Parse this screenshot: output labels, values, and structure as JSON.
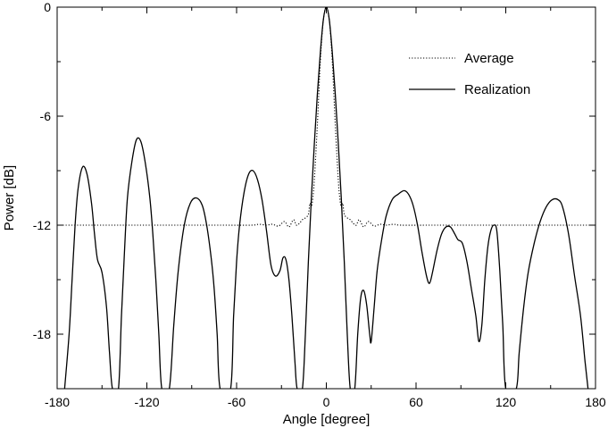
{
  "chart_data": {
    "type": "line",
    "xlabel": "Angle [degree]",
    "ylabel": "Power [dB]",
    "xlim": [
      -180,
      180
    ],
    "ylim": [
      -21,
      0
    ],
    "xticks": [
      -180,
      -120,
      -60,
      0,
      60,
      120,
      180
    ],
    "yticks": [
      0,
      -6,
      -12,
      -18
    ],
    "grid": false,
    "legend_position": "top-right",
    "series": [
      {
        "name": "Average",
        "style": "dotted",
        "color": "#000000",
        "points": [
          [
            -180,
            -12.0
          ],
          [
            -150,
            -12.0
          ],
          [
            -110,
            -12.0
          ],
          [
            -70,
            -12.0
          ],
          [
            -50,
            -12.0
          ],
          [
            -45,
            -11.95
          ],
          [
            -40,
            -12.0
          ],
          [
            -36,
            -11.95
          ],
          [
            -32,
            -12.05
          ],
          [
            -28,
            -11.8
          ],
          [
            -25,
            -12.1
          ],
          [
            -22,
            -11.7
          ],
          [
            -20,
            -12.0
          ],
          [
            -18,
            -11.9
          ],
          [
            -16,
            -11.7
          ],
          [
            -14,
            -11.6
          ],
          [
            -12,
            -11.4
          ],
          [
            -11,
            -10.8
          ],
          [
            -10,
            -11.0
          ],
          [
            -9,
            -10.5
          ],
          [
            -8,
            -9.5
          ],
          [
            -6,
            -6.5
          ],
          [
            -4,
            -3.0
          ],
          [
            -2,
            -0.7
          ],
          [
            0,
            0.0
          ],
          [
            2,
            -0.7
          ],
          [
            4,
            -3.0
          ],
          [
            6,
            -6.5
          ],
          [
            8,
            -9.5
          ],
          [
            9,
            -10.5
          ],
          [
            10,
            -11.0
          ],
          [
            11,
            -10.8
          ],
          [
            12,
            -11.4
          ],
          [
            14,
            -11.6
          ],
          [
            16,
            -11.7
          ],
          [
            18,
            -11.9
          ],
          [
            20,
            -12.0
          ],
          [
            22,
            -11.7
          ],
          [
            25,
            -12.1
          ],
          [
            28,
            -11.8
          ],
          [
            32,
            -12.05
          ],
          [
            36,
            -11.95
          ],
          [
            40,
            -12.0
          ],
          [
            45,
            -11.95
          ],
          [
            50,
            -12.0
          ],
          [
            70,
            -12.0
          ],
          [
            110,
            -12.0
          ],
          [
            150,
            -12.0
          ],
          [
            180,
            -12.0
          ]
        ]
      },
      {
        "name": "Realization",
        "style": "solid",
        "color": "#000000",
        "points": [
          [
            -175,
            -21.0
          ],
          [
            -172,
            -18.0
          ],
          [
            -170,
            -15.0
          ],
          [
            -168,
            -12.0
          ],
          [
            -166,
            -10.0
          ],
          [
            -163,
            -8.8
          ],
          [
            -160,
            -9.2
          ],
          [
            -157,
            -10.8
          ],
          [
            -155,
            -12.5
          ],
          [
            -153,
            -13.9
          ],
          [
            -150,
            -14.6
          ],
          [
            -147,
            -16.5
          ],
          [
            -145,
            -19.0
          ],
          [
            -143,
            -21.0
          ],
          [
            -139,
            -21.0
          ],
          [
            -137,
            -17.0
          ],
          [
            -135,
            -13.5
          ],
          [
            -133,
            -10.5
          ],
          [
            -130,
            -8.5
          ],
          [
            -127,
            -7.3
          ],
          [
            -124,
            -7.4
          ],
          [
            -121,
            -8.6
          ],
          [
            -118,
            -10.5
          ],
          [
            -116,
            -12.5
          ],
          [
            -114,
            -15.0
          ],
          [
            -112,
            -18.0
          ],
          [
            -110,
            -21.0
          ],
          [
            -105,
            -21.0
          ],
          [
            -102,
            -17.5
          ],
          [
            -99,
            -14.5
          ],
          [
            -95,
            -12.0
          ],
          [
            -91,
            -10.8
          ],
          [
            -87,
            -10.5
          ],
          [
            -83,
            -10.9
          ],
          [
            -80,
            -12.0
          ],
          [
            -77,
            -13.8
          ],
          [
            -75,
            -15.5
          ],
          [
            -73,
            -18.0
          ],
          [
            -71,
            -21.0
          ],
          [
            -64,
            -21.0
          ],
          [
            -62,
            -17.0
          ],
          [
            -60,
            -14.0
          ],
          [
            -58,
            -12.0
          ],
          [
            -55,
            -10.2
          ],
          [
            -52,
            -9.2
          ],
          [
            -49,
            -9.0
          ],
          [
            -46,
            -9.5
          ],
          [
            -43,
            -10.6
          ],
          [
            -40,
            -12.3
          ],
          [
            -37,
            -14.2
          ],
          [
            -34,
            -14.8
          ],
          [
            -31,
            -14.5
          ],
          [
            -29,
            -13.8
          ],
          [
            -27,
            -13.9
          ],
          [
            -25,
            -15.0
          ],
          [
            -23,
            -17.0
          ],
          [
            -21,
            -19.5
          ],
          [
            -19.5,
            -21.0
          ],
          [
            -16,
            -21.0
          ],
          [
            -14,
            -18.0
          ],
          [
            -12,
            -14.0
          ],
          [
            -10,
            -10.5
          ],
          [
            -8,
            -7.5
          ],
          [
            -6,
            -4.8
          ],
          [
            -4,
            -2.5
          ],
          [
            -2,
            -0.7
          ],
          [
            0,
            0.0
          ],
          [
            2,
            -0.7
          ],
          [
            4,
            -2.5
          ],
          [
            6,
            -4.8
          ],
          [
            8,
            -7.5
          ],
          [
            10,
            -10.5
          ],
          [
            12,
            -14.0
          ],
          [
            14,
            -18.0
          ],
          [
            16,
            -21.0
          ],
          [
            19,
            -21.0
          ],
          [
            21,
            -18.0
          ],
          [
            23,
            -16.0
          ],
          [
            25,
            -15.6
          ],
          [
            27,
            -16.4
          ],
          [
            29,
            -18.0
          ],
          [
            30,
            -18.4
          ],
          [
            32,
            -16.5
          ],
          [
            34,
            -14.5
          ],
          [
            37,
            -12.8
          ],
          [
            40,
            -11.5
          ],
          [
            44,
            -10.6
          ],
          [
            48,
            -10.3
          ],
          [
            52,
            -10.1
          ],
          [
            55,
            -10.3
          ],
          [
            58,
            -10.9
          ],
          [
            61,
            -12.0
          ],
          [
            64,
            -13.5
          ],
          [
            67,
            -14.8
          ],
          [
            69,
            -15.2
          ],
          [
            71,
            -14.6
          ],
          [
            74,
            -13.4
          ],
          [
            77,
            -12.5
          ],
          [
            80,
            -12.1
          ],
          [
            83,
            -12.1
          ],
          [
            86,
            -12.5
          ],
          [
            88,
            -12.8
          ],
          [
            91,
            -13.0
          ],
          [
            94,
            -14.0
          ],
          [
            97,
            -15.5
          ],
          [
            100,
            -17.0
          ],
          [
            102,
            -18.4
          ],
          [
            104,
            -17.5
          ],
          [
            106,
            -15.0
          ],
          [
            108,
            -13.2
          ],
          [
            110,
            -12.3
          ],
          [
            112,
            -12.0
          ],
          [
            114,
            -12.3
          ],
          [
            116,
            -14.5
          ],
          [
            118,
            -17.5
          ],
          [
            120,
            -21.0
          ],
          [
            127,
            -21.0
          ],
          [
            129,
            -19.0
          ],
          [
            132,
            -16.5
          ],
          [
            135,
            -14.6
          ],
          [
            139,
            -13.0
          ],
          [
            143,
            -11.8
          ],
          [
            147,
            -11.0
          ],
          [
            151,
            -10.6
          ],
          [
            155,
            -10.6
          ],
          [
            158,
            -11.0
          ],
          [
            162,
            -12.5
          ],
          [
            166,
            -14.8
          ],
          [
            170,
            -17.0
          ],
          [
            173,
            -19.5
          ],
          [
            175,
            -21.0
          ]
        ]
      }
    ]
  }
}
